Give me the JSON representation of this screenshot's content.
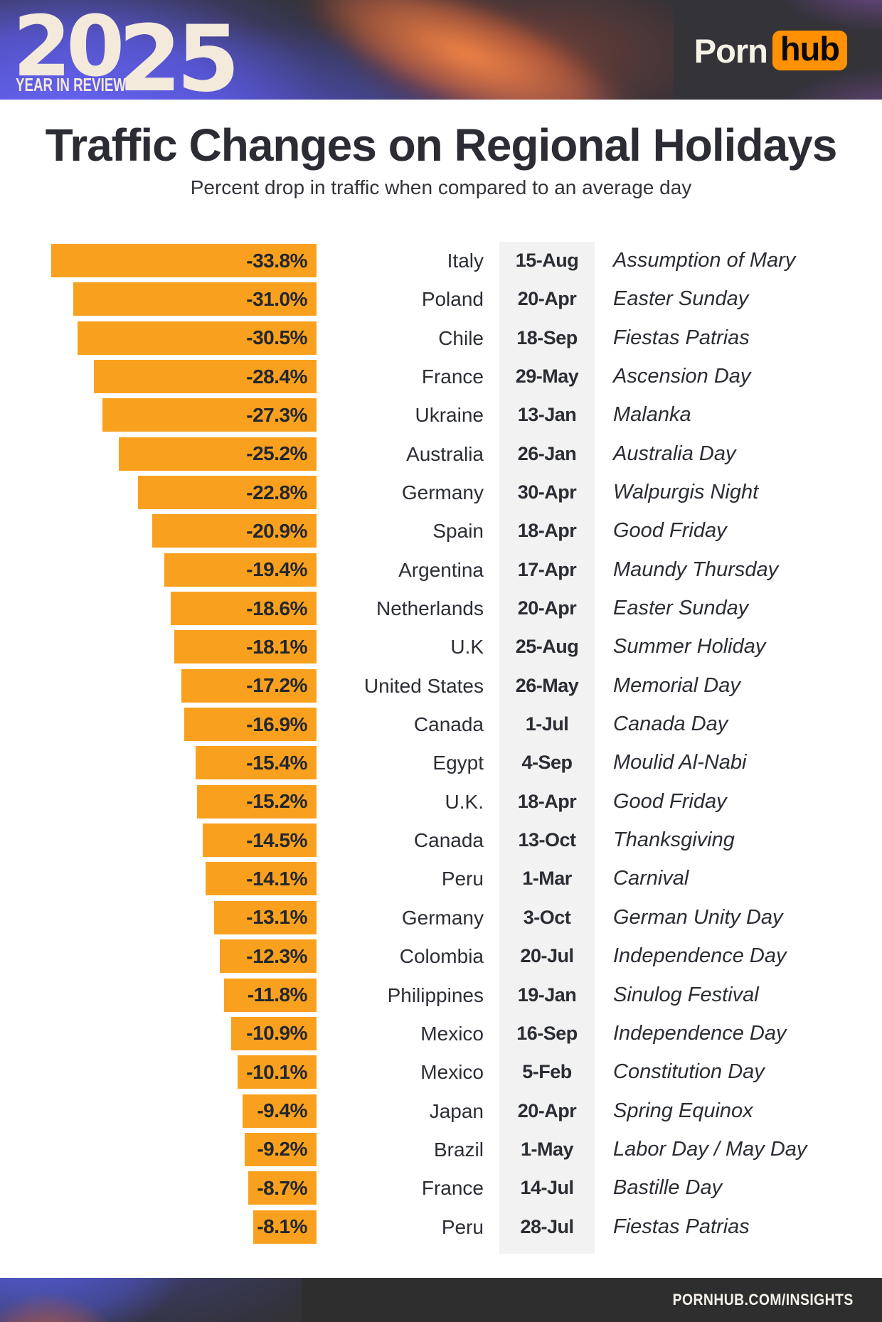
{
  "header": {
    "year_small": "20",
    "year_large": "25",
    "tagline": "YEAR IN REVIEW",
    "brand_porn": "Porn",
    "brand_hub": "hub"
  },
  "title": "Traffic Changes on Regional Holidays",
  "subtitle": "Percent drop in traffic when compared to an average day",
  "footer": {
    "url_label": "PORNHUB.COM/INSIGHTS"
  },
  "colors": {
    "bar_orange": "#f9a11e",
    "brand_orange": "#ff9102",
    "date_band_gray": "#f2f2f2",
    "text_dark": "#2c2c34",
    "header_background": "#0a0a11",
    "footer_background": "#050507",
    "logo_cream": "#f3eadb",
    "header_blue": "#4946f1",
    "header_streak_orange": "#f87022",
    "header_purple": "#983ecd"
  },
  "chart_data": {
    "type": "bar",
    "orientation": "horizontal",
    "title": "Traffic Changes on Regional Holidays",
    "subtitle": "Percent drop in traffic when compared to an average day",
    "value_unit": "percent",
    "value_range": [
      -35,
      0
    ],
    "bars_right_aligned": true,
    "legend": "none",
    "grid": "off",
    "rows": [
      {
        "value": -33.8,
        "label": "-33.8%",
        "country": "Italy",
        "date": "15-Aug",
        "holiday": "Assumption of Mary"
      },
      {
        "value": -31.0,
        "label": "-31.0%",
        "country": "Poland",
        "date": "20-Apr",
        "holiday": "Easter Sunday"
      },
      {
        "value": -30.5,
        "label": "-30.5%",
        "country": "Chile",
        "date": "18-Sep",
        "holiday": "Fiestas Patrias"
      },
      {
        "value": -28.4,
        "label": "-28.4%",
        "country": "France",
        "date": "29-May",
        "holiday": "Ascension Day"
      },
      {
        "value": -27.3,
        "label": "-27.3%",
        "country": "Ukraine",
        "date": "13-Jan",
        "holiday": "Malanka"
      },
      {
        "value": -25.2,
        "label": "-25.2%",
        "country": "Australia",
        "date": "26-Jan",
        "holiday": "Australia Day"
      },
      {
        "value": -22.8,
        "label": "-22.8%",
        "country": "Germany",
        "date": "30-Apr",
        "holiday": "Walpurgis Night"
      },
      {
        "value": -20.9,
        "label": "-20.9%",
        "country": "Spain",
        "date": "18-Apr",
        "holiday": "Good Friday"
      },
      {
        "value": -19.4,
        "label": "-19.4%",
        "country": "Argentina",
        "date": "17-Apr",
        "holiday": "Maundy Thursday"
      },
      {
        "value": -18.6,
        "label": "-18.6%",
        "country": "Netherlands",
        "date": "20-Apr",
        "holiday": "Easter Sunday"
      },
      {
        "value": -18.1,
        "label": "-18.1%",
        "country": "U.K",
        "date": "25-Aug",
        "holiday": "Summer Holiday"
      },
      {
        "value": -17.2,
        "label": "-17.2%",
        "country": "United States",
        "date": "26-May",
        "holiday": "Memorial Day"
      },
      {
        "value": -16.9,
        "label": "-16.9%",
        "country": "Canada",
        "date": "1-Jul",
        "holiday": "Canada Day"
      },
      {
        "value": -15.4,
        "label": "-15.4%",
        "country": "Egypt",
        "date": "4-Sep",
        "holiday": "Moulid Al-Nabi"
      },
      {
        "value": -15.2,
        "label": "-15.2%",
        "country": "U.K.",
        "date": "18-Apr",
        "holiday": "Good Friday"
      },
      {
        "value": -14.5,
        "label": "-14.5%",
        "country": "Canada",
        "date": "13-Oct",
        "holiday": "Thanksgiving"
      },
      {
        "value": -14.1,
        "label": "-14.1%",
        "country": "Peru",
        "date": "1-Mar",
        "holiday": "Carnival"
      },
      {
        "value": -13.1,
        "label": "-13.1%",
        "country": "Germany",
        "date": "3-Oct",
        "holiday": "German Unity Day"
      },
      {
        "value": -12.3,
        "label": "-12.3%",
        "country": "Colombia",
        "date": "20-Jul",
        "holiday": "Independence Day"
      },
      {
        "value": -11.8,
        "label": "-11.8%",
        "country": "Philippines",
        "date": "19-Jan",
        "holiday": "Sinulog Festival"
      },
      {
        "value": -10.9,
        "label": "-10.9%",
        "country": "Mexico",
        "date": "16-Sep",
        "holiday": "Independence Day"
      },
      {
        "value": -10.1,
        "label": "-10.1%",
        "country": "Mexico",
        "date": "5-Feb",
        "holiday": "Constitution Day"
      },
      {
        "value": -9.4,
        "label": "-9.4%",
        "country": "Japan",
        "date": "20-Apr",
        "holiday": "Spring Equinox"
      },
      {
        "value": -9.2,
        "label": "-9.2%",
        "country": "Brazil",
        "date": "1-May",
        "holiday": "Labor Day / May Day"
      },
      {
        "value": -8.7,
        "label": "-8.7%",
        "country": "France",
        "date": "14-Jul",
        "holiday": "Bastille Day"
      },
      {
        "value": -8.1,
        "label": "-8.1%",
        "country": "Peru",
        "date": "28-Jul",
        "holiday": "Fiestas Patrias"
      }
    ]
  }
}
